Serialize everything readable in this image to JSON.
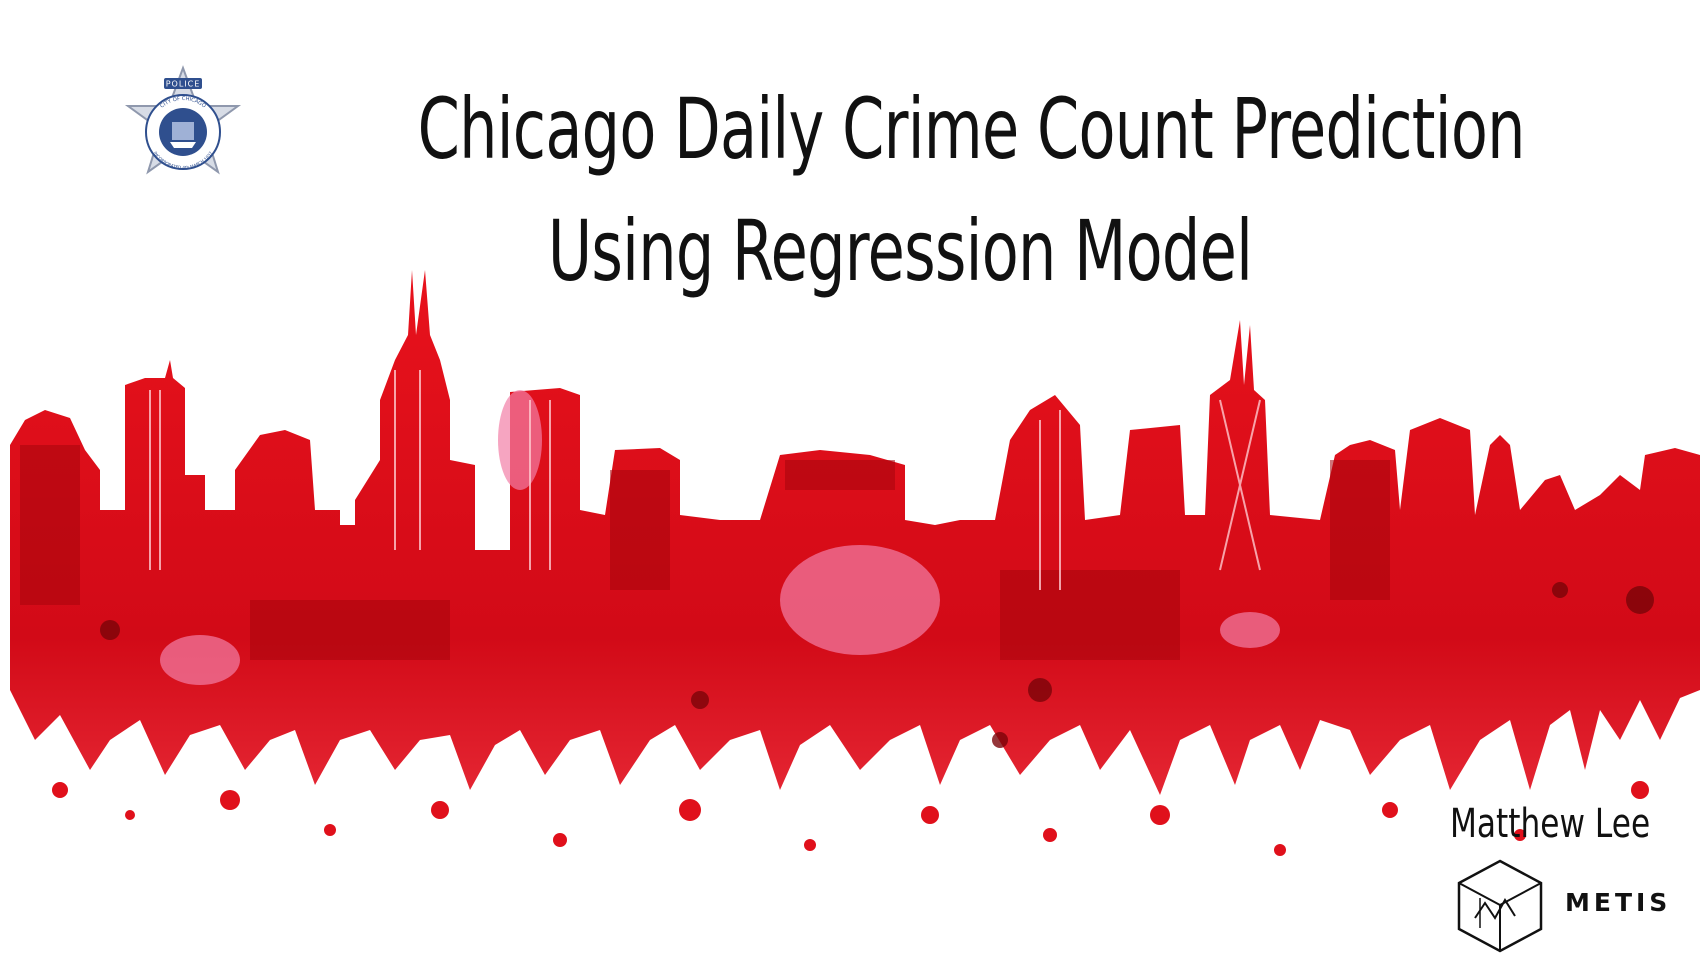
{
  "title": {
    "line1": "Chicago Daily Crime Count Prediction",
    "line2": "Using Regression Model"
  },
  "author": "Matthew Lee",
  "org": "METIS",
  "badge": {
    "top_text": "POLICE",
    "ring_text": "CITY OF CHICAGO",
    "bottom_text": "INCORPORATED 4th MARCH 1837"
  },
  "colors": {
    "skyline_red": "#e8121c",
    "skyline_dark": "#a5060d",
    "skyline_pink": "#f27fa6",
    "badge_blue": "#2f4f8e",
    "badge_silver": "#d7dce6",
    "text": "#111111"
  }
}
